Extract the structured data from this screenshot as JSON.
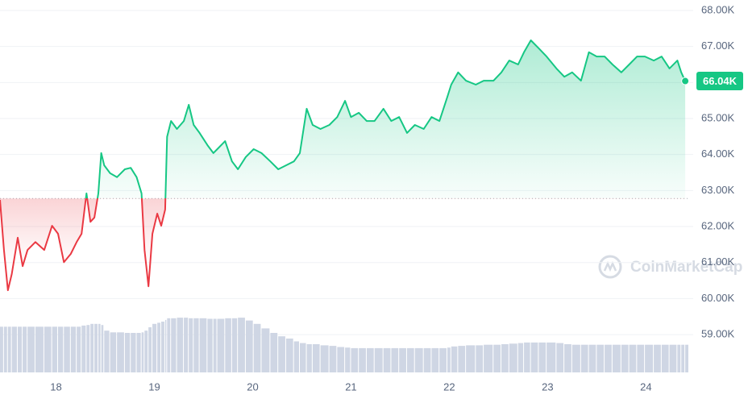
{
  "chart_data": {
    "type": "line",
    "x": [
      17.43,
      17.47,
      17.51,
      17.55,
      17.61,
      17.66,
      17.71,
      17.79,
      17.88,
      17.96,
      18.02,
      18.08,
      18.15,
      18.21,
      18.26,
      18.31,
      18.35,
      18.39,
      18.43,
      18.46,
      18.49,
      18.55,
      18.62,
      18.7,
      18.76,
      18.82,
      18.87,
      18.9,
      18.94,
      18.98,
      19.03,
      19.07,
      19.11,
      19.13,
      19.17,
      19.23,
      19.3,
      19.35,
      19.4,
      19.46,
      19.54,
      19.6,
      19.64,
      19.72,
      19.79,
      19.85,
      19.93,
      20.01,
      20.09,
      20.18,
      20.26,
      20.34,
      20.42,
      20.48,
      20.55,
      20.61,
      20.69,
      20.78,
      20.86,
      20.94,
      21.0,
      21.08,
      21.16,
      21.24,
      21.33,
      21.41,
      21.49,
      21.57,
      21.65,
      21.74,
      21.82,
      21.9,
      21.98,
      22.02,
      22.09,
      22.17,
      22.27,
      22.35,
      22.45,
      22.53,
      22.61,
      22.7,
      22.76,
      22.83,
      22.91,
      22.99,
      23.09,
      23.17,
      23.25,
      23.34,
      23.42,
      23.5,
      23.58,
      23.66,
      23.75,
      23.83,
      23.91,
      23.99,
      24.08,
      24.16,
      24.24,
      24.32,
      24.36,
      24.4
    ],
    "values": [
      62740,
      61350,
      60230,
      60680,
      61690,
      60900,
      61350,
      61570,
      61350,
      62020,
      61800,
      61010,
      61240,
      61570,
      61800,
      62920,
      62130,
      62250,
      62920,
      64040,
      63700,
      63480,
      63370,
      63590,
      63630,
      63370,
      62920,
      61350,
      60340,
      61800,
      62360,
      62020,
      62470,
      64490,
      64930,
      64710,
      64930,
      65380,
      64820,
      64600,
      64260,
      64040,
      64150,
      64370,
      63810,
      63590,
      63930,
      64150,
      64040,
      63810,
      63590,
      63700,
      63810,
      64040,
      65270,
      64820,
      64710,
      64820,
      65040,
      65490,
      65040,
      65160,
      64930,
      64930,
      65270,
      64930,
      65040,
      64600,
      64820,
      64710,
      65040,
      64930,
      65600,
      65940,
      66280,
      66050,
      65940,
      66050,
      66050,
      66280,
      66610,
      66500,
      66840,
      67170,
      66950,
      66720,
      66390,
      66160,
      66280,
      66050,
      66840,
      66720,
      66720,
      66500,
      66280,
      66500,
      66720,
      66720,
      66610,
      66720,
      66390,
      66610,
      66280,
      66040
    ],
    "volume": [
      81,
      81,
      81,
      81,
      81,
      81,
      81,
      81,
      81,
      81,
      81,
      81,
      81,
      81,
      83,
      84,
      86,
      86,
      86,
      84,
      74,
      71,
      71,
      70,
      70,
      70,
      71,
      74,
      80,
      86,
      88,
      90,
      93,
      96,
      96,
      97,
      97,
      96,
      96,
      96,
      95,
      95,
      95,
      96,
      96,
      97,
      92,
      86,
      78,
      70,
      64,
      60,
      55,
      52,
      50,
      50,
      48,
      47,
      45,
      44,
      43,
      43,
      43,
      43,
      43,
      43,
      43,
      43,
      43,
      43,
      43,
      43,
      44,
      46,
      47,
      48,
      48,
      49,
      49,
      50,
      51,
      52,
      53,
      53,
      53,
      53,
      52,
      50,
      49,
      49,
      49,
      49,
      49,
      49,
      49,
      49,
      49,
      49,
      49,
      49,
      49,
      49,
      49,
      49
    ],
    "baseline": 62780,
    "up_color": "#16c784",
    "down_color": "#ea3943",
    "volume_color": "#cfd6e4",
    "last_label": "66.04K",
    "watermark": "CoinMarketCap",
    "xlim": [
      17.43,
      24.44
    ],
    "xticks": [
      18,
      19,
      20,
      21,
      22,
      23,
      24
    ],
    "ylim": [
      57950,
      68290
    ],
    "yticks": [
      {
        "value": 59000,
        "label": "59.00K"
      },
      {
        "value": 60000,
        "label": "60.00K"
      },
      {
        "value": 61000,
        "label": "61.00K"
      },
      {
        "value": 62000,
        "label": "62.00K"
      },
      {
        "value": 63000,
        "label": "63.00K"
      },
      {
        "value": 64000,
        "label": "64.00K"
      },
      {
        "value": 65000,
        "label": "65.00K"
      },
      {
        "value": 66000,
        "label": "66.00K"
      },
      {
        "value": 67000,
        "label": "67.00K"
      },
      {
        "value": 68000,
        "label": "68.00K"
      }
    ],
    "grid": true
  }
}
